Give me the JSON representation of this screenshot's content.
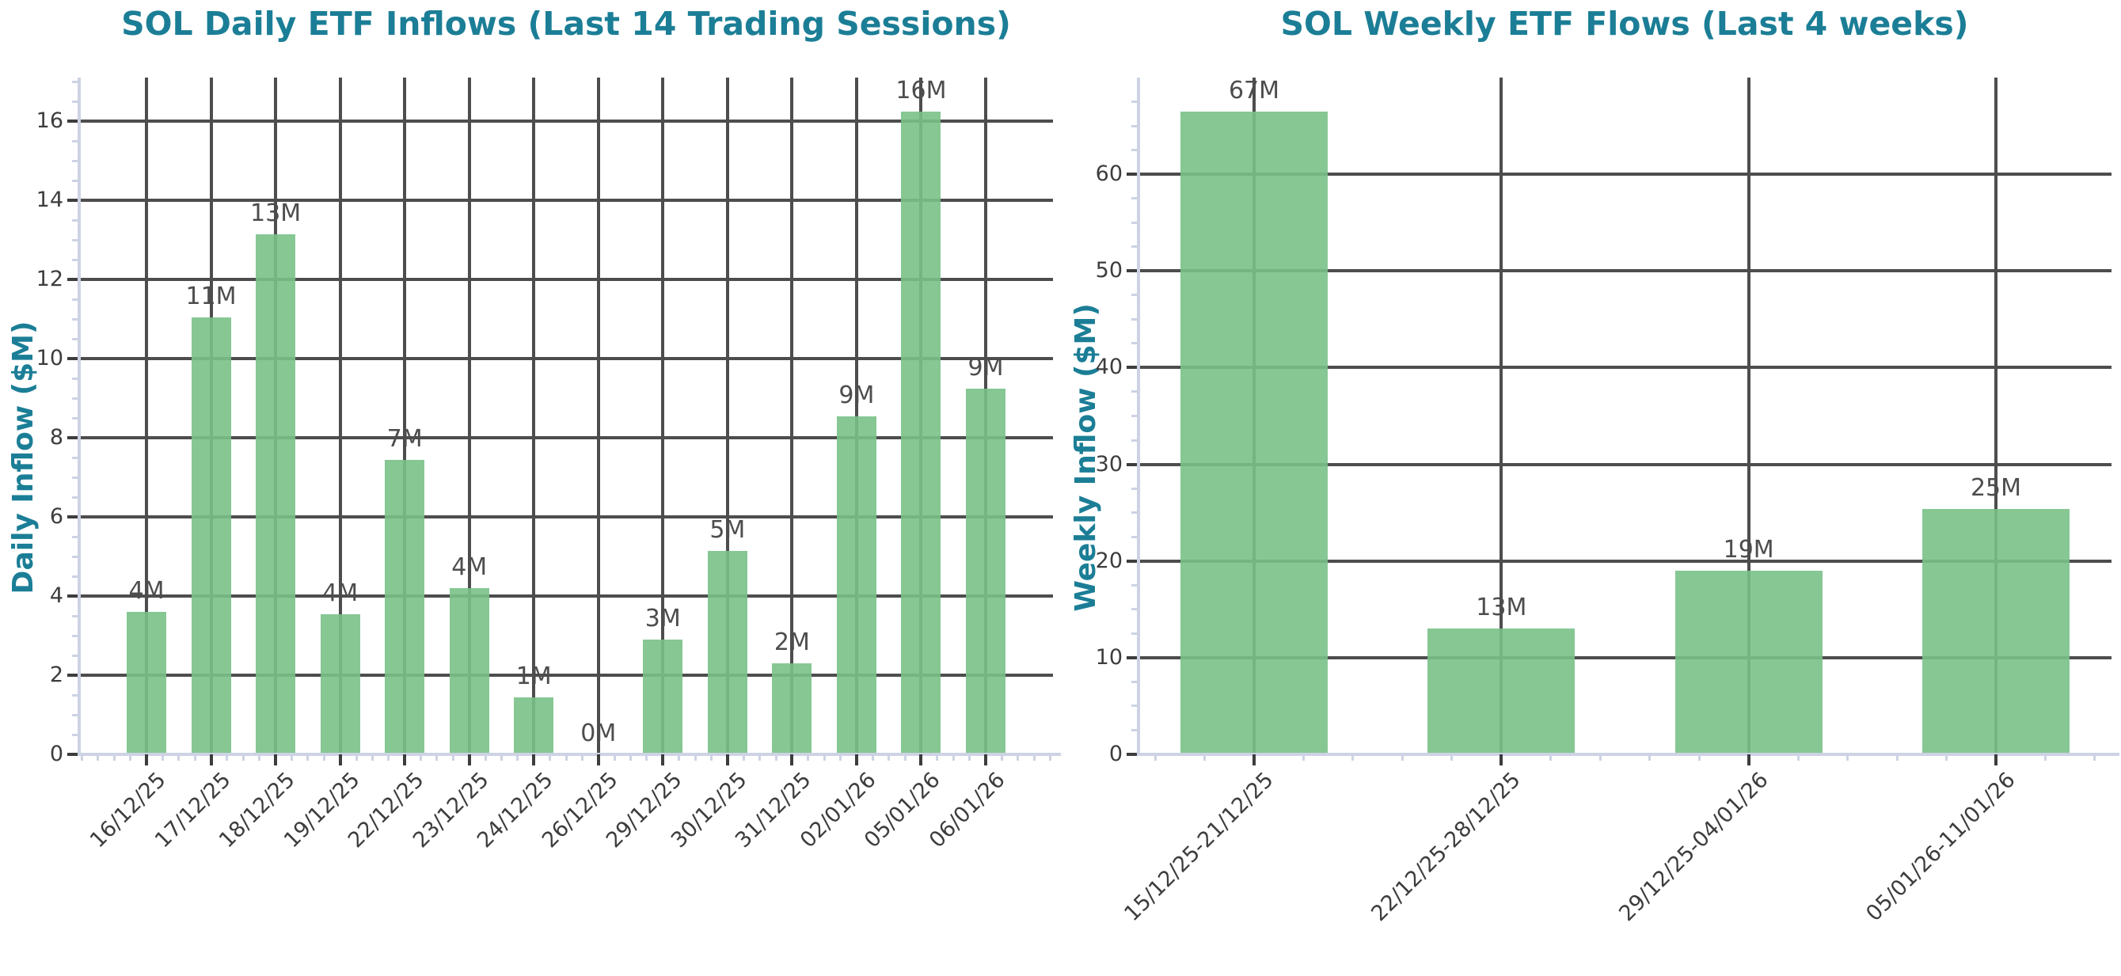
{
  "page": {
    "background": "#ffffff"
  },
  "chart_data": [
    {
      "type": "bar",
      "title": "SOL Daily ETF Inflows (Last 14 Trading Sessions)",
      "ylabel": "Daily Inflow ($M)",
      "xlabel": "",
      "categories": [
        "16/12/25",
        "17/12/25",
        "18/12/25",
        "19/12/25",
        "22/12/25",
        "23/12/25",
        "24/12/25",
        "26/12/25",
        "29/12/25",
        "30/12/25",
        "31/12/25",
        "02/01/26",
        "05/01/26",
        "06/01/26"
      ],
      "values": [
        3.6,
        11.05,
        13.15,
        3.55,
        7.45,
        4.2,
        1.45,
        0,
        2.9,
        5.15,
        2.3,
        8.55,
        16.25,
        9.25
      ],
      "bar_labels": [
        "4M",
        "11M",
        "13M",
        "4M",
        "7M",
        "4M",
        "1M",
        "0M",
        "3M",
        "5M",
        "2M",
        "9M",
        "16M",
        "9M"
      ],
      "yticks": [
        0,
        2,
        4,
        6,
        8,
        10,
        12,
        14,
        16
      ],
      "ylim": [
        0,
        17.1
      ],
      "grid": true,
      "legend_position": "none",
      "colors": {
        "bar": "#86c794",
        "title": "#1b7e96",
        "axis_label": "#1b7e96",
        "grid": "#4d4d4d",
        "tick_label": "#3d3d3d",
        "value_label": "#4d4d4d",
        "spine": "#cdd3e4"
      }
    },
    {
      "type": "bar",
      "title": "SOL Weekly ETF Flows (Last 4 weeks)",
      "ylabel": "Weekly Inflow ($M)",
      "xlabel": "",
      "categories": [
        "15/12/25-21/12/25",
        "22/12/25-28/12/25",
        "29/12/25-04/01/26",
        "05/01/26-11/01/26"
      ],
      "values": [
        66.5,
        13.0,
        19.0,
        25.4
      ],
      "bar_labels": [
        "67M",
        "13M",
        "19M",
        "25M"
      ],
      "yticks": [
        0,
        10,
        20,
        30,
        40,
        50,
        60
      ],
      "ylim": [
        0,
        70
      ],
      "grid": true,
      "legend_position": "none",
      "colors": {
        "bar": "#86c794",
        "title": "#1b7e96",
        "axis_label": "#1b7e96",
        "grid": "#4d4d4d",
        "tick_label": "#3d3d3d",
        "value_label": "#4d4d4d",
        "spine": "#cdd3e4"
      }
    }
  ]
}
